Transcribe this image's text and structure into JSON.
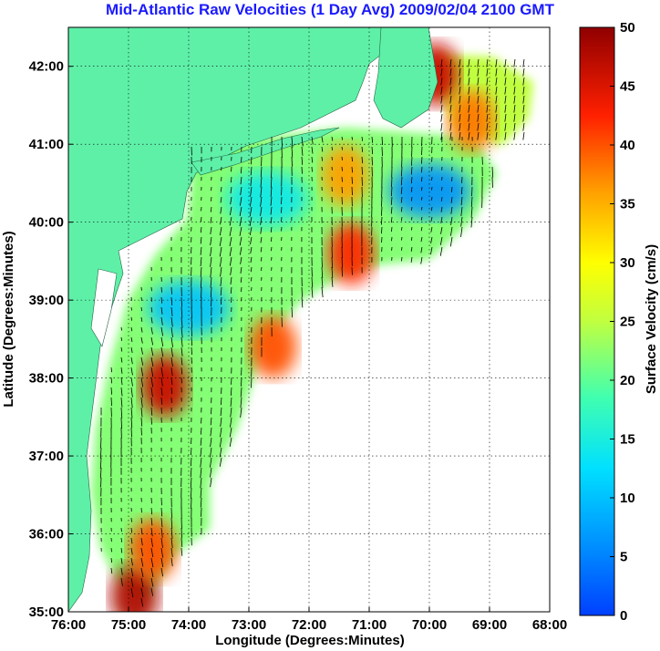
{
  "chart_data": {
    "type": "heatmap",
    "title": "Mid-Atlantic Raw Velocities (1 Day Avg) 2009/02/04 2100 GMT",
    "xlabel": "Longitude (Degrees:Minutes)",
    "ylabel": "Latitude (Degrees:Minutes)",
    "x_ticks": [
      "76:00",
      "75:00",
      "74:00",
      "73:00",
      "72:00",
      "71:00",
      "70:00",
      "69:00",
      "68:00"
    ],
    "x_tick_values": [
      -76,
      -75,
      -74,
      -73,
      -72,
      -71,
      -70,
      -69,
      -68
    ],
    "y_ticks": [
      "35:00",
      "36:00",
      "37:00",
      "38:00",
      "39:00",
      "40:00",
      "41:00",
      "42:00"
    ],
    "y_tick_values": [
      35,
      36,
      37,
      38,
      39,
      40,
      41,
      42
    ],
    "xlim": [
      -76,
      -68
    ],
    "ylim": [
      35,
      42.5
    ],
    "grid": true,
    "colorbar": {
      "label": "Surface Velocity (cm/s)",
      "range": [
        0,
        50
      ],
      "ticks": [
        "0",
        "5",
        "10",
        "15",
        "20",
        "25",
        "30",
        "35",
        "40",
        "45",
        "50"
      ],
      "colormap": "jet"
    },
    "land_color": "#5ff0a8",
    "hotspots": [
      {
        "lon": -74.4,
        "lat": 37.9,
        "speed": 46
      },
      {
        "lon": -74.9,
        "lat": 35.2,
        "speed": 48
      },
      {
        "lon": -71.3,
        "lat": 39.6,
        "speed": 42
      },
      {
        "lon": -71.4,
        "lat": 40.6,
        "speed": 36
      },
      {
        "lon": -72.6,
        "lat": 38.4,
        "speed": 40
      },
      {
        "lon": -69.9,
        "lat": 41.9,
        "speed": 46
      },
      {
        "lon": -69.3,
        "lat": 41.3,
        "speed": 38
      },
      {
        "lon": -74.6,
        "lat": 35.8,
        "speed": 40
      }
    ],
    "calm_areas": [
      {
        "lon": -70.0,
        "lat": 40.4,
        "speed": 6
      },
      {
        "lon": -74.0,
        "lat": 38.9,
        "speed": 10
      },
      {
        "lon": -72.7,
        "lat": 40.3,
        "speed": 14
      }
    ]
  }
}
